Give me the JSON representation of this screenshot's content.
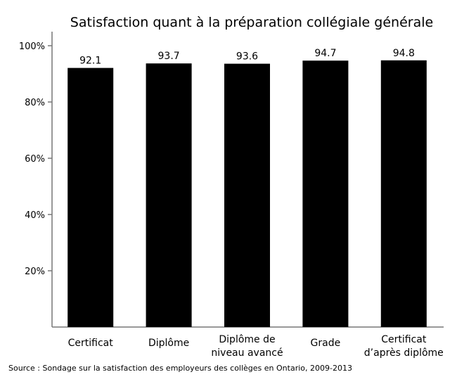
{
  "chart_data": {
    "type": "bar",
    "title": "Satisfaction quant à la préparation collégiale générale",
    "categories": [
      [
        "Certificat"
      ],
      [
        "Diplôme"
      ],
      [
        "Diplôme de",
        "niveau avancé"
      ],
      [
        "Grade"
      ],
      [
        "Certificat",
        "d’après diplôme"
      ]
    ],
    "values": [
      92.1,
      93.7,
      93.6,
      94.7,
      94.8
    ],
    "data_labels": [
      "92.1",
      "93.7",
      "93.6",
      "94.7",
      "94.8"
    ],
    "ylim": [
      0,
      100
    ],
    "yticks": [
      20,
      40,
      60,
      80,
      100
    ],
    "ytick_labels": [
      "20%",
      "40%",
      "60%",
      "80%",
      "100%"
    ],
    "xlabel": "",
    "ylabel": "",
    "grid": false,
    "bar_color": "#000000"
  },
  "source": "Source : Sondage sur la satisfaction des employeurs des collèges en Ontario, 2009-2013"
}
